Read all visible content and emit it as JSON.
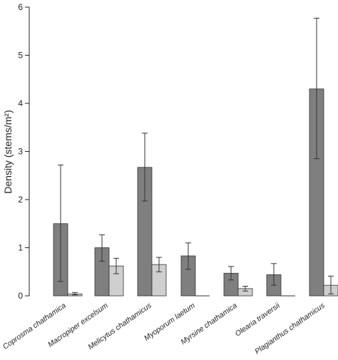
{
  "chart_data": {
    "type": "bar",
    "categories": [
      "Coprosma chathamica",
      "Macropiper excelsum",
      "Melicytus chathamicus",
      "Myoporum laetum",
      "Myrsine chathamica",
      "Olearia traversii",
      "Plagianthus chathamicus"
    ],
    "series": [
      {
        "values": [
          1.5,
          1.0,
          2.67,
          0.83,
          0.47,
          0.44,
          4.3
        ],
        "error_lower": [
          0.3,
          0.72,
          1.97,
          0.55,
          0.33,
          0.22,
          2.85
        ],
        "error_upper": [
          2.72,
          1.27,
          3.38,
          1.1,
          0.61,
          0.67,
          5.77
        ],
        "color": "#7f7f7f"
      },
      {
        "values": [
          0.04,
          0.62,
          0.65,
          0.0,
          0.15,
          0.0,
          0.22
        ],
        "error_lower": [
          0.02,
          0.46,
          0.5,
          0.0,
          0.1,
          0.0,
          0.04
        ],
        "error_upper": [
          0.07,
          0.78,
          0.8,
          0.0,
          0.2,
          0.0,
          0.41
        ],
        "color": "#cfcfcf"
      }
    ],
    "ylabel": "Density (stems/m²)",
    "ylim": [
      0,
      6
    ],
    "yticks": [
      "0",
      "1",
      "2",
      "3",
      "4",
      "5",
      "6"
    ],
    "grid": false,
    "legend": "none"
  }
}
